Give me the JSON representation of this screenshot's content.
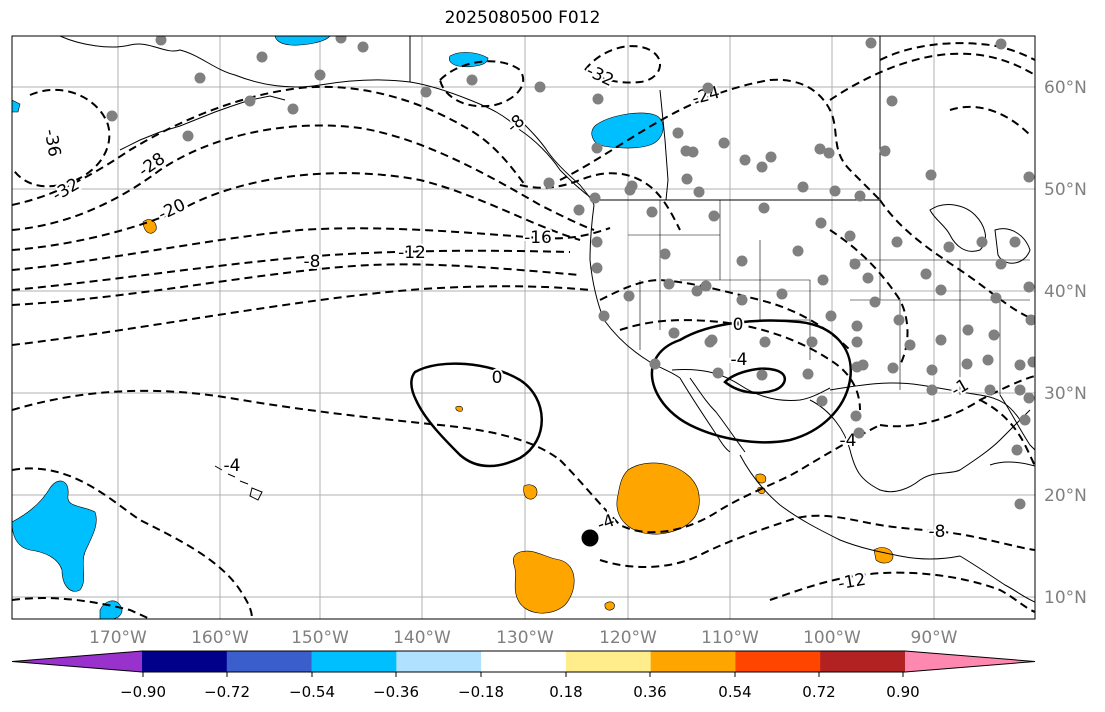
{
  "title": "2025080500 F012",
  "axes": {
    "lon_labels": [
      "170°W",
      "160°W",
      "150°W",
      "140°W",
      "130°W",
      "120°W",
      "110°W",
      "100°W",
      "90°W"
    ],
    "lat_labels": [
      "60°N",
      "50°N",
      "40°N",
      "30°N",
      "20°N",
      "10°N"
    ],
    "label_color": "#808080",
    "grid": true
  },
  "contour_labels": [
    "-36",
    "-32",
    "-28",
    "-20",
    "-32",
    "-24",
    "-8",
    "-16",
    "-12",
    "-8",
    "0",
    "0",
    "-4",
    "-4",
    "-4",
    "-8",
    "-12",
    "-4",
    "-1"
  ],
  "colorbar": {
    "ticks": [
      "−0.90",
      "−0.72",
      "−0.54",
      "−0.36",
      "−0.18",
      "0.18",
      "0.36",
      "0.54",
      "0.72",
      "0.90"
    ],
    "colors": [
      "#9932cc",
      "#00008b",
      "#3a5fcd",
      "#00bfff",
      "#b0e2ff",
      "#ffffff",
      "#ffec8b",
      "#ffa500",
      "#ff4500",
      "#b22222",
      "#ff88b0"
    ]
  },
  "fill_colors": {
    "orange": "#ffa500",
    "light_blue": "#00bfff"
  },
  "markers": {
    "station_color": "#808080",
    "storm_center_color": "#000000"
  }
}
